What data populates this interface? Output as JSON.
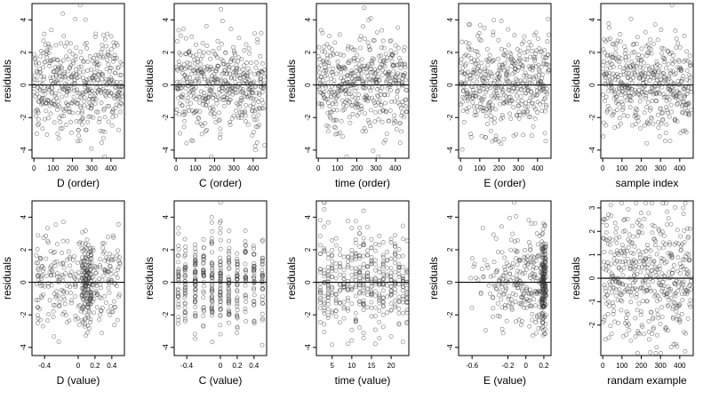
{
  "chart_data": [
    {
      "type": "scatter",
      "xlabel": "D (order)",
      "ylabel": "residuals",
      "xlim": [
        -10,
        470
      ],
      "ylim": [
        -4.5,
        5
      ],
      "xticks": [
        0,
        100,
        200,
        300,
        400
      ],
      "yticks": [
        -4,
        -2,
        0,
        2,
        4
      ],
      "hline": 0,
      "gen": {
        "mode": "order",
        "n": 460
      }
    },
    {
      "type": "scatter",
      "xlabel": "C (order)",
      "ylabel": "residuals",
      "xlim": [
        -10,
        470
      ],
      "ylim": [
        -4.5,
        5
      ],
      "xticks": [
        0,
        100,
        200,
        300,
        400
      ],
      "yticks": [
        -4,
        -2,
        0,
        2,
        4
      ],
      "hline": 0,
      "gen": {
        "mode": "order",
        "n": 460
      }
    },
    {
      "type": "scatter",
      "xlabel": "time (order)",
      "ylabel": "residuals",
      "xlim": [
        -10,
        470
      ],
      "ylim": [
        -4.5,
        5
      ],
      "xticks": [
        0,
        100,
        200,
        300,
        400
      ],
      "yticks": [
        -4,
        -2,
        0,
        2,
        4
      ],
      "hline": 0,
      "gen": {
        "mode": "order",
        "n": 460
      }
    },
    {
      "type": "scatter",
      "xlabel": "E (order)",
      "ylabel": "residuals",
      "xlim": [
        -10,
        470
      ],
      "ylim": [
        -4.5,
        5
      ],
      "xticks": [
        0,
        100,
        200,
        300,
        400
      ],
      "yticks": [
        -4,
        -2,
        0,
        2,
        4
      ],
      "hline": 0,
      "gen": {
        "mode": "order",
        "n": 460
      }
    },
    {
      "type": "scatter",
      "xlabel": "sample index",
      "ylabel": "residuals",
      "xlim": [
        -10,
        470
      ],
      "ylim": [
        -4.5,
        5
      ],
      "xticks": [
        0,
        100,
        200,
        300,
        400
      ],
      "yticks": [
        -4,
        -2,
        0,
        2,
        4
      ],
      "hline": 0,
      "gen": {
        "mode": "order",
        "n": 460
      }
    },
    {
      "type": "scatter",
      "xlabel": "D (value)",
      "ylabel": "residuals",
      "xlim": [
        -0.55,
        0.55
      ],
      "ylim": [
        -4.5,
        5
      ],
      "xticks": [
        -0.4,
        0.0,
        0.2,
        0.4
      ],
      "yticks": [
        -4,
        -2,
        0,
        2,
        4
      ],
      "hline": 0,
      "gen": {
        "mode": "spread",
        "n": 420,
        "lo": -0.5,
        "hi": 0.5,
        "cluster": 0.1
      }
    },
    {
      "type": "scatter",
      "xlabel": "C (value)",
      "ylabel": "residuals",
      "xlim": [
        -0.55,
        0.55
      ],
      "ylim": [
        -4.5,
        5
      ],
      "xticks": [
        -0.4,
        0.0,
        0.2,
        0.4
      ],
      "yticks": [
        -4,
        -2,
        0,
        2,
        4
      ],
      "hline": 0,
      "gen": {
        "mode": "columns",
        "n": 420,
        "cols": [
          -0.5,
          -0.42,
          -0.3,
          -0.2,
          -0.1,
          0.0,
          0.1,
          0.2,
          0.3,
          0.4,
          0.5
        ]
      }
    },
    {
      "type": "scatter",
      "xlabel": "time (value)",
      "ylabel": "residuals",
      "xlim": [
        1,
        24.5
      ],
      "ylim": [
        -4.5,
        5
      ],
      "xticks": [
        5,
        10,
        15,
        20
      ],
      "yticks": [
        -4,
        -2,
        0,
        2,
        4
      ],
      "hline": 0,
      "gen": {
        "mode": "columns",
        "n": 420,
        "cols": [
          2,
          3,
          4,
          5,
          6,
          7,
          8,
          9,
          10,
          11,
          12,
          13,
          14,
          15,
          16,
          17,
          18,
          19,
          20,
          21,
          22,
          23,
          24
        ]
      }
    },
    {
      "type": "scatter",
      "xlabel": "E (value)",
      "ylabel": "residuals",
      "xlim": [
        -0.75,
        0.28
      ],
      "ylim": [
        -4.5,
        5
      ],
      "xticks": [
        -0.6,
        -0.2,
        0.0,
        0.2
      ],
      "yticks": [
        -4,
        -2,
        0,
        2,
        4
      ],
      "hline": 0,
      "gen": {
        "mode": "skew",
        "n": 420,
        "lo": -0.72,
        "hi": 0.22,
        "peak": 0.2
      }
    },
    {
      "type": "scatter",
      "xlabel": "randam example",
      "ylabel": "residuals",
      "xlim": [
        -10,
        470
      ],
      "ylim": [
        -3.3,
        3.3
      ],
      "xticks": [
        0,
        100,
        200,
        300,
        400
      ],
      "yticks": [
        -2,
        -1,
        0,
        1,
        2,
        3
      ],
      "hline": 0,
      "gen": {
        "mode": "order",
        "n": 460,
        "scale": 1.0
      }
    }
  ]
}
